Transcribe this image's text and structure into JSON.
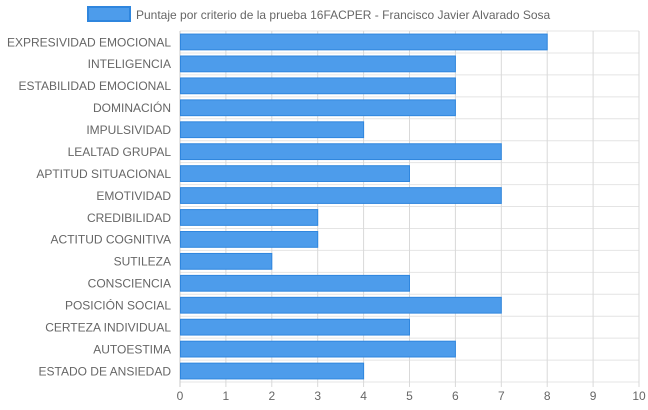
{
  "chart_data": {
    "type": "bar",
    "orientation": "horizontal",
    "legend": {
      "position": "top",
      "entries": [
        "Puntaje por criterio de la prueba 16FACPER - Francisco Javier Alvarado Sosa"
      ]
    },
    "categories": [
      "EXPRESIVIDAD EMOCIONAL",
      "INTELIGENCIA",
      "ESTABILIDAD EMOCIONAL",
      "DOMINACIÓN",
      "IMPULSIVIDAD",
      "LEALTAD GRUPAL",
      "APTITUD SITUACIONAL",
      "EMOTIVIDAD",
      "CREDIBILIDAD",
      "ACTITUD COGNITIVA",
      "SUTILEZA",
      "CONSCIENCIA",
      "POSICIÓN SOCIAL",
      "CERTEZA INDIVIDUAL",
      "AUTOESTIMA",
      "ESTADO DE ANSIEDAD"
    ],
    "series": [
      {
        "name": "Puntaje por criterio de la prueba 16FACPER - Francisco Javier Alvarado Sosa",
        "values": [
          8,
          6,
          6,
          6,
          4,
          7,
          5,
          7,
          3,
          3,
          2,
          5,
          7,
          5,
          6,
          4
        ]
      }
    ],
    "xlim": [
      0,
      10
    ],
    "xticks": [
      "0",
      "1",
      "2",
      "3",
      "4",
      "5",
      "6",
      "7",
      "8",
      "9",
      "10"
    ],
    "grid": true,
    "colors": {
      "bar_fill": "#4d9ceb",
      "bar_border": "#2f86de"
    }
  }
}
